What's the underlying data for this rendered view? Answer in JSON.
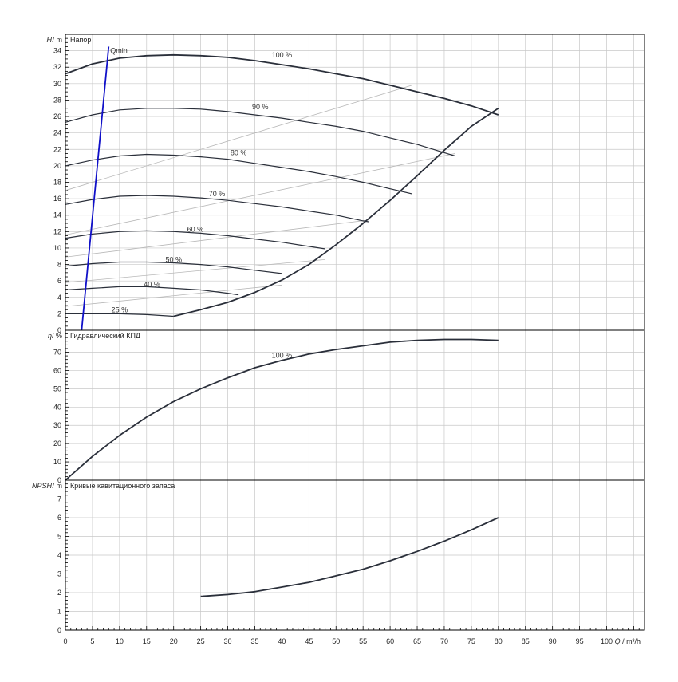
{
  "chart_data": [
    {
      "type": "line",
      "title": "Напор",
      "ylabel": "H",
      "yunit": "/ m",
      "xlim": [
        0,
        107
      ],
      "ylim": [
        0,
        36
      ],
      "yticks": [
        0,
        2,
        4,
        6,
        8,
        10,
        12,
        14,
        16,
        18,
        20,
        22,
        24,
        26,
        28,
        30,
        32,
        34
      ],
      "series": [
        {
          "name": "100 %",
          "label_at": [
            40,
            33.2
          ],
          "x": [
            0,
            5,
            10,
            15,
            20,
            25,
            30,
            35,
            40,
            45,
            50,
            55,
            60,
            65,
            70,
            75,
            80
          ],
          "y": [
            31.2,
            32.4,
            33.1,
            33.4,
            33.5,
            33.4,
            33.2,
            32.8,
            32.3,
            31.8,
            31.2,
            30.6,
            29.8,
            29.0,
            28.2,
            27.3,
            26.2
          ]
        },
        {
          "name": "90 %",
          "label_at": [
            36,
            26.9
          ],
          "x": [
            0,
            5,
            10,
            15,
            20,
            25,
            30,
            35,
            40,
            45,
            50,
            55,
            60,
            65,
            70,
            72
          ],
          "y": [
            25.3,
            26.2,
            26.8,
            27.0,
            27.0,
            26.9,
            26.6,
            26.2,
            25.8,
            25.3,
            24.8,
            24.2,
            23.4,
            22.6,
            21.6,
            21.2
          ]
        },
        {
          "name": "80 %",
          "label_at": [
            32,
            21.3
          ],
          "x": [
            0,
            5,
            10,
            15,
            20,
            25,
            30,
            35,
            40,
            45,
            50,
            55,
            60,
            64
          ],
          "y": [
            20.0,
            20.7,
            21.2,
            21.4,
            21.3,
            21.1,
            20.8,
            20.3,
            19.8,
            19.3,
            18.7,
            18.0,
            17.2,
            16.6
          ]
        },
        {
          "name": "70 %",
          "label_at": [
            28,
            16.3
          ],
          "x": [
            0,
            5,
            10,
            15,
            20,
            25,
            30,
            35,
            40,
            45,
            50,
            55,
            56
          ],
          "y": [
            15.3,
            15.9,
            16.3,
            16.4,
            16.3,
            16.1,
            15.8,
            15.4,
            15.0,
            14.5,
            14.0,
            13.3,
            13.2
          ]
        },
        {
          "name": "60 %",
          "label_at": [
            24,
            12.0
          ],
          "x": [
            0,
            5,
            10,
            15,
            20,
            25,
            30,
            35,
            40,
            45,
            48
          ],
          "y": [
            11.2,
            11.7,
            12.0,
            12.1,
            12.0,
            11.8,
            11.5,
            11.1,
            10.7,
            10.2,
            9.9
          ]
        },
        {
          "name": "50 %",
          "label_at": [
            20,
            8.3
          ],
          "x": [
            0,
            5,
            10,
            15,
            20,
            25,
            30,
            35,
            40
          ],
          "y": [
            7.8,
            8.1,
            8.3,
            8.3,
            8.2,
            8.0,
            7.7,
            7.3,
            6.9
          ]
        },
        {
          "name": "40 %",
          "label_at": [
            16,
            5.3
          ],
          "x": [
            0,
            5,
            10,
            15,
            20,
            25,
            30,
            32
          ],
          "y": [
            4.9,
            5.1,
            5.3,
            5.3,
            5.1,
            4.9,
            4.5,
            4.3
          ]
        },
        {
          "name": "25 %",
          "label_at": [
            10,
            2.2
          ],
          "x": [
            0,
            5,
            10,
            15,
            20
          ],
          "y": [
            2.0,
            2.0,
            2.0,
            1.9,
            1.7
          ]
        },
        {
          "name": "",
          "x": [
            20,
            25,
            30,
            35,
            40,
            45,
            50,
            55,
            60,
            65,
            70,
            75,
            80
          ],
          "y": [
            1.7,
            2.5,
            3.4,
            4.6,
            6.1,
            8.0,
            10.4,
            13.0,
            15.8,
            18.8,
            21.9,
            24.8,
            27.0
          ]
        }
      ],
      "qmin": {
        "label": "Qmin",
        "x": [
          3,
          8
        ],
        "y": [
          0,
          34.5
        ]
      },
      "construction_lines": [
        {
          "x": [
            0,
            64
          ],
          "y": [
            17,
            29.8
          ]
        },
        {
          "x": [
            0,
            72
          ],
          "y": [
            11.6,
            21.5
          ]
        },
        {
          "x": [
            0,
            56
          ],
          "y": [
            8.9,
            13.4
          ]
        },
        {
          "x": [
            0,
            48
          ],
          "y": [
            5.8,
            8.6
          ]
        },
        {
          "x": [
            0,
            40
          ],
          "y": [
            2.9,
            5.5
          ]
        }
      ]
    },
    {
      "type": "line",
      "title": "Гидравлический КПД",
      "ylabel": "η",
      "yunit": "/ %",
      "xlim": [
        0,
        107
      ],
      "ylim": [
        0,
        82
      ],
      "yticks": [
        0,
        10,
        20,
        30,
        40,
        50,
        60,
        70
      ],
      "series": [
        {
          "name": "100 %",
          "label_at": [
            40,
            67
          ],
          "x": [
            0,
            5,
            10,
            15,
            20,
            25,
            30,
            35,
            40,
            45,
            50,
            55,
            60,
            65,
            70,
            75,
            80
          ],
          "y": [
            0,
            13,
            24.5,
            34.5,
            43,
            50,
            56,
            61.5,
            65.5,
            69,
            71.5,
            73.5,
            75.5,
            76.5,
            77,
            77,
            76.5
          ]
        }
      ]
    },
    {
      "type": "line",
      "title": "Кривые кавитационного запаса",
      "ylabel": "NPSH",
      "yunit": "/ m",
      "xlabel": "Q",
      "xunit": "/ m³/h",
      "xlim": [
        0,
        107
      ],
      "ylim": [
        0,
        8
      ],
      "yticks": [
        0,
        1,
        2,
        3,
        4,
        5,
        6,
        7
      ],
      "xticks": [
        0,
        5,
        10,
        15,
        20,
        25,
        30,
        35,
        40,
        45,
        50,
        55,
        60,
        65,
        70,
        75,
        80,
        85,
        90,
        95,
        100
      ],
      "series": [
        {
          "name": "",
          "x": [
            25,
            30,
            35,
            40,
            45,
            50,
            55,
            60,
            65,
            70,
            75,
            80
          ],
          "y": [
            1.8,
            1.9,
            2.05,
            2.3,
            2.55,
            2.9,
            3.25,
            3.7,
            4.2,
            4.75,
            5.35,
            6.0
          ]
        }
      ]
    }
  ],
  "colors": {
    "curve": "#2a2f3a",
    "qmin": "#1010c8",
    "grid": "#c8c8c8",
    "construction": "#b8b8b8",
    "frame": "#000000"
  }
}
